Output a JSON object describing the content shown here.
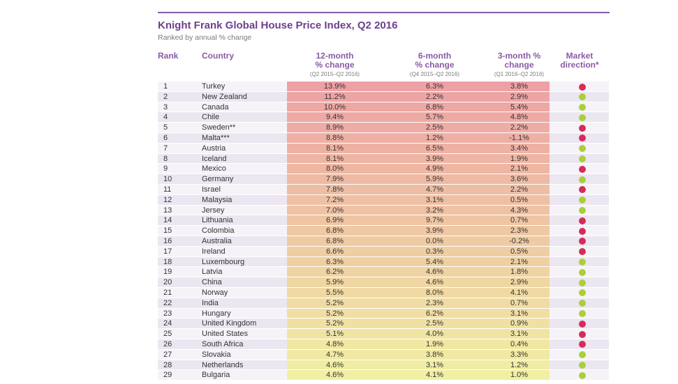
{
  "title": "Knight Frank Global House Price Index, Q2 2016",
  "subtitle": "Ranked by annual % change",
  "headers": {
    "rank": "Rank",
    "country": "Country",
    "col12": {
      "main1": "12-month",
      "main2": "% change",
      "sub": "(Q2 2015–Q2 2016)"
    },
    "col6": {
      "main1": "6-month",
      "main2": "% change",
      "sub": "(Q4 2015–Q2 2016)"
    },
    "col3": {
      "main1": "3-month %",
      "main2": "change",
      "sub": "(Q1 2016–Q2 2016)"
    },
    "market": {
      "main1": "Market",
      "main2": "direction*"
    }
  },
  "colors": {
    "title": "#6d3f8f",
    "header": "#8a5aa6",
    "up": "#a9cf3c",
    "down": "#d62c5a",
    "heat_top": "#eda1a4",
    "heat_bottom": "#f1efa3"
  },
  "rows": [
    {
      "rank": "1",
      "country": "Turkey",
      "m12": "13.9%",
      "m6": "6.3%",
      "m3": "3.8%",
      "direction": "down"
    },
    {
      "rank": "2",
      "country": "New Zealand",
      "m12": "11.2%",
      "m6": "2.2%",
      "m3": "2.9%",
      "direction": "up"
    },
    {
      "rank": "3",
      "country": "Canada",
      "m12": "10.0%",
      "m6": "6.8%",
      "m3": "5.4%",
      "direction": "up"
    },
    {
      "rank": "4",
      "country": "Chile",
      "m12": "9.4%",
      "m6": "5.7%",
      "m3": "4.8%",
      "direction": "up"
    },
    {
      "rank": "5",
      "country": "Sweden**",
      "m12": "8.9%",
      "m6": "2.5%",
      "m3": "2.2%",
      "direction": "down"
    },
    {
      "rank": "6",
      "country": "Malta***",
      "m12": "8.8%",
      "m6": "1.2%",
      "m3": "-1.1%",
      "direction": "down"
    },
    {
      "rank": "7",
      "country": "Austria",
      "m12": "8.1%",
      "m6": "6.5%",
      "m3": "3.4%",
      "direction": "up"
    },
    {
      "rank": "8",
      "country": "Iceland",
      "m12": "8.1%",
      "m6": "3.9%",
      "m3": "1.9%",
      "direction": "up"
    },
    {
      "rank": "9",
      "country": "Mexico",
      "m12": "8.0%",
      "m6": "4.9%",
      "m3": "2.1%",
      "direction": "down"
    },
    {
      "rank": "10",
      "country": "Germany",
      "m12": "7.9%",
      "m6": "5.9%",
      "m3": "3.6%",
      "direction": "up"
    },
    {
      "rank": "11",
      "country": "Israel",
      "m12": "7.8%",
      "m6": "4.7%",
      "m3": "2.2%",
      "direction": "down"
    },
    {
      "rank": "12",
      "country": "Malaysia",
      "m12": "7.2%",
      "m6": "3.1%",
      "m3": "0.5%",
      "direction": "up"
    },
    {
      "rank": "13",
      "country": "Jersey",
      "m12": "7.0%",
      "m6": "3.2%",
      "m3": "4.3%",
      "direction": "up"
    },
    {
      "rank": "14",
      "country": "Lithuania",
      "m12": "6.9%",
      "m6": "9.7%",
      "m3": "0.7%",
      "direction": "down"
    },
    {
      "rank": "15",
      "country": "Colombia",
      "m12": "6.8%",
      "m6": "3.9%",
      "m3": "2.3%",
      "direction": "down"
    },
    {
      "rank": "16",
      "country": "Australia",
      "m12": "6.8%",
      "m6": "0.0%",
      "m3": "-0.2%",
      "direction": "down"
    },
    {
      "rank": "17",
      "country": "Ireland",
      "m12": "6.6%",
      "m6": "0.3%",
      "m3": "0.5%",
      "direction": "down"
    },
    {
      "rank": "18",
      "country": "Luxembourg",
      "m12": "6.3%",
      "m6": "5.4%",
      "m3": "2.1%",
      "direction": "up"
    },
    {
      "rank": "19",
      "country": "Latvia",
      "m12": "6.2%",
      "m6": "4.6%",
      "m3": "1.8%",
      "direction": "up"
    },
    {
      "rank": "20",
      "country": "China",
      "m12": "5.9%",
      "m6": "4.6%",
      "m3": "2.9%",
      "direction": "up"
    },
    {
      "rank": "21",
      "country": "Norway",
      "m12": "5.5%",
      "m6": "8.0%",
      "m3": "4.1%",
      "direction": "up"
    },
    {
      "rank": "22",
      "country": "India",
      "m12": "5.2%",
      "m6": "2.3%",
      "m3": "0.7%",
      "direction": "up"
    },
    {
      "rank": "23",
      "country": "Hungary",
      "m12": "5.2%",
      "m6": "6.2%",
      "m3": "3.1%",
      "direction": "up"
    },
    {
      "rank": "24",
      "country": "United Kingdom",
      "m12": "5.2%",
      "m6": "2.5%",
      "m3": "0.9%",
      "direction": "down"
    },
    {
      "rank": "25",
      "country": "United States",
      "m12": "5.1%",
      "m6": "4.0%",
      "m3": "3.1%",
      "direction": "down"
    },
    {
      "rank": "26",
      "country": "South Africa",
      "m12": "4.8%",
      "m6": "1.9%",
      "m3": "0.4%",
      "direction": "down"
    },
    {
      "rank": "27",
      "country": "Slovakia",
      "m12": "4.7%",
      "m6": "3.8%",
      "m3": "3.3%",
      "direction": "up"
    },
    {
      "rank": "28",
      "country": "Netherlands",
      "m12": "4.6%",
      "m6": "3.1%",
      "m3": "1.2%",
      "direction": "up"
    },
    {
      "rank": "29",
      "country": "Bulgaria",
      "m12": "4.6%",
      "m6": "4.1%",
      "m3": "1.0%",
      "direction": "up"
    }
  ]
}
